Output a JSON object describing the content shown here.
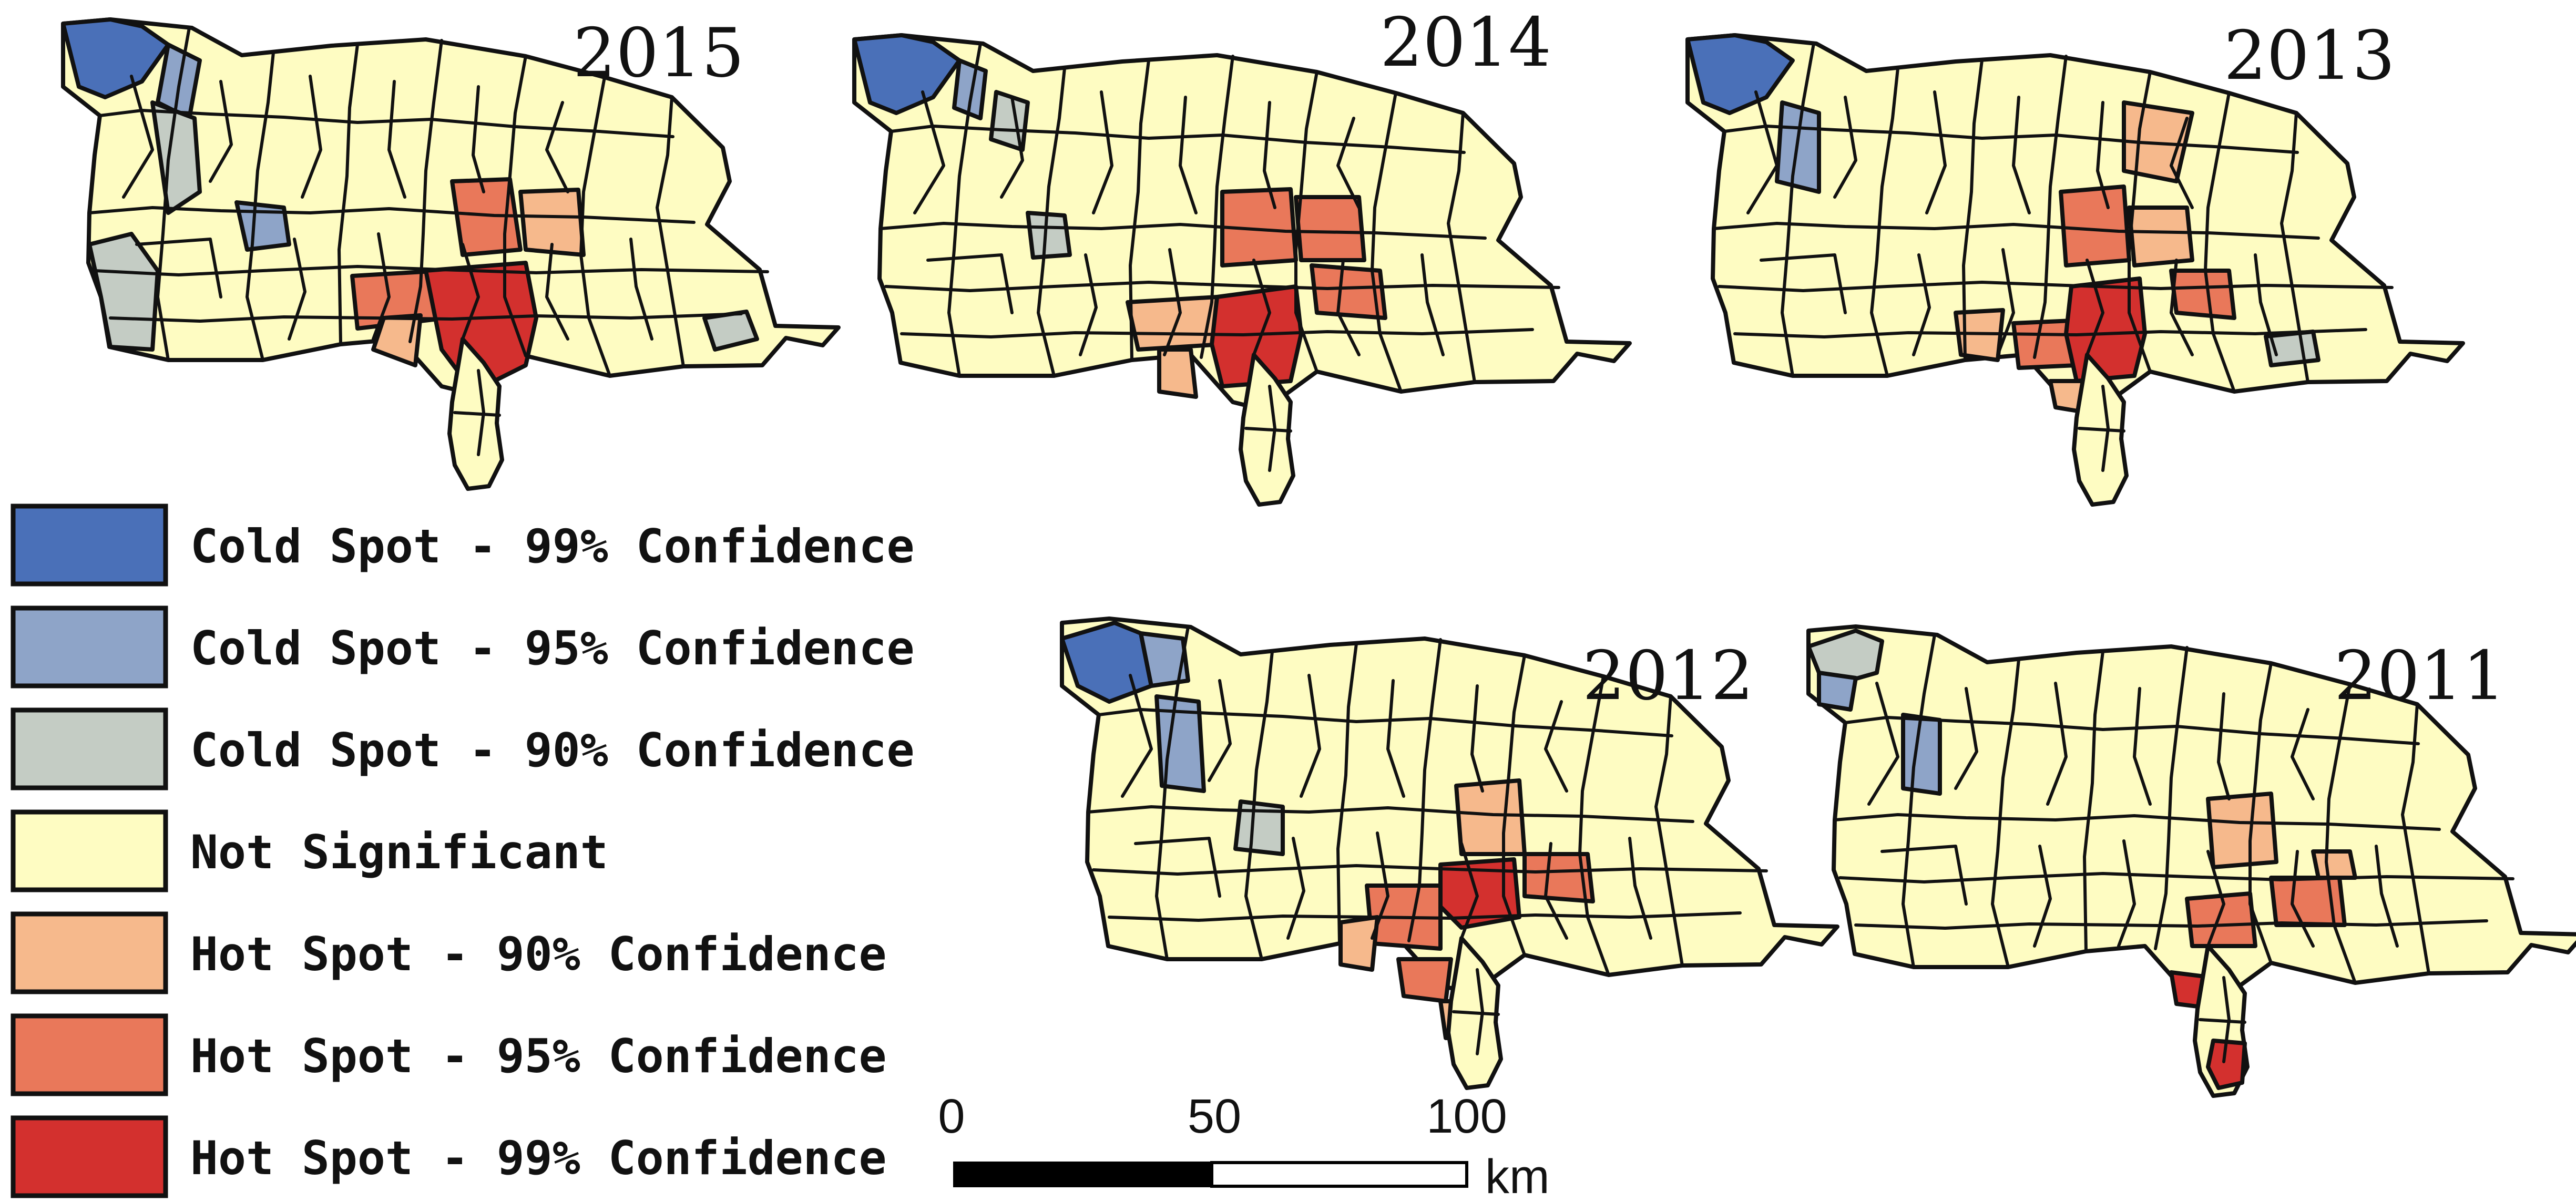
{
  "panels": [
    {
      "year": "2015"
    },
    {
      "year": "2014"
    },
    {
      "year": "2013"
    },
    {
      "year": "2012"
    },
    {
      "year": "2011"
    }
  ],
  "legend": [
    {
      "label": "Cold Spot - 99% Confidence",
      "color": "#4a70b8"
    },
    {
      "label": "Cold Spot - 95% Confidence",
      "color": "#8ea4c8"
    },
    {
      "label": "Cold Spot - 90% Confidence",
      "color": "#c4ccc4"
    },
    {
      "label": "Not Significant",
      "color": "#fefcc2"
    },
    {
      "label": "Hot Spot - 90% Confidence",
      "color": "#f6b98c"
    },
    {
      "label": "Hot Spot - 95% Confidence",
      "color": "#e9785a"
    },
    {
      "label": "Hot Spot - 99% Confidence",
      "color": "#d3302e"
    }
  ],
  "scale_bar": {
    "ticks": [
      "0",
      "50",
      "100"
    ],
    "unit": "km"
  }
}
